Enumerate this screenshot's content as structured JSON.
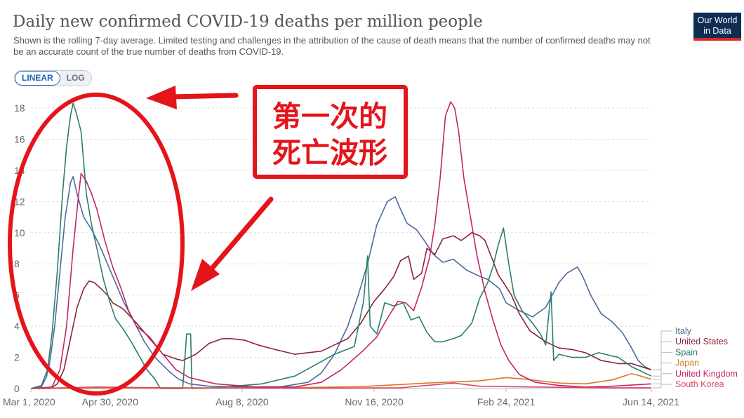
{
  "header": {
    "title": "Daily new confirmed COVID-19 deaths per million people",
    "subtitle": "Shown is the rolling 7-day average. Limited testing and challenges in the attribution of the cause of death means that the number of confirmed deaths may not be an accurate count of the true number of deaths from COVID-19."
  },
  "logo": {
    "line1": "Our World",
    "line2": "in Data"
  },
  "scale_toggle": {
    "linear": "LINEAR",
    "log": "LOG",
    "selected": "LINEAR"
  },
  "annotation": {
    "line1": "第一次的",
    "line2": "死亡波形",
    "color": "#e4141a"
  },
  "chart_data": {
    "type": "line",
    "title": "Daily new confirmed COVID-19 deaths per million people",
    "x_tick_labels": [
      "Mar 1, 2020",
      "Apr 30, 2020",
      "Aug 8, 2020",
      "Nov 16, 2020",
      "Feb 24, 2021",
      "Jun 14, 2021"
    ],
    "x_ticks_day": [
      0,
      60,
      160,
      260,
      360,
      470
    ],
    "x_range_day": [
      0,
      470
    ],
    "ylim": [
      0,
      18
    ],
    "y_ticks": [
      0,
      2,
      4,
      6,
      8,
      10,
      12,
      14,
      16,
      18
    ],
    "grid": true,
    "legend": "right",
    "series": [
      {
        "name": "Italy",
        "color": "#4c6a9c",
        "points": [
          [
            0,
            0
          ],
          [
            8,
            0.2
          ],
          [
            14,
            1.5
          ],
          [
            18,
            4
          ],
          [
            22,
            7.5
          ],
          [
            26,
            11
          ],
          [
            30,
            13.2
          ],
          [
            32,
            13.6
          ],
          [
            35,
            12.5
          ],
          [
            40,
            11
          ],
          [
            46,
            10.2
          ],
          [
            52,
            9.2
          ],
          [
            58,
            8
          ],
          [
            64,
            6.8
          ],
          [
            70,
            5.6
          ],
          [
            78,
            4.3
          ],
          [
            86,
            3
          ],
          [
            94,
            2
          ],
          [
            100,
            1.5
          ],
          [
            106,
            1
          ],
          [
            112,
            0.6
          ],
          [
            120,
            0.3
          ],
          [
            135,
            0.15
          ],
          [
            160,
            0.1
          ],
          [
            190,
            0.12
          ],
          [
            210,
            0.4
          ],
          [
            220,
            1
          ],
          [
            230,
            2.2
          ],
          [
            240,
            4
          ],
          [
            248,
            6
          ],
          [
            255,
            8
          ],
          [
            262,
            10.5
          ],
          [
            270,
            12
          ],
          [
            276,
            12.3
          ],
          [
            280,
            11.5
          ],
          [
            285,
            10.6
          ],
          [
            292,
            10.2
          ],
          [
            298,
            9.5
          ],
          [
            305,
            8.6
          ],
          [
            312,
            8.1
          ],
          [
            320,
            8.3
          ],
          [
            330,
            7.6
          ],
          [
            340,
            7.2
          ],
          [
            346,
            7
          ],
          [
            355,
            6.4
          ],
          [
            360,
            5.5
          ],
          [
            370,
            5
          ],
          [
            380,
            4.6
          ],
          [
            390,
            5.2
          ],
          [
            400,
            6.8
          ],
          [
            406,
            7.4
          ],
          [
            414,
            7.8
          ],
          [
            418,
            7.2
          ],
          [
            424,
            6
          ],
          [
            432,
            4.8
          ],
          [
            440,
            4.3
          ],
          [
            448,
            3.6
          ],
          [
            455,
            2.6
          ],
          [
            460,
            1.8
          ],
          [
            465,
            1.4
          ],
          [
            470,
            1.2
          ]
        ]
      },
      {
        "name": "United States",
        "color": "#8b2434",
        "points": [
          [
            0,
            0
          ],
          [
            15,
            0
          ],
          [
            20,
            0.3
          ],
          [
            25,
            1.2
          ],
          [
            30,
            3.2
          ],
          [
            35,
            5.2
          ],
          [
            40,
            6.4
          ],
          [
            44,
            6.9
          ],
          [
            48,
            6.8
          ],
          [
            52,
            6.5
          ],
          [
            58,
            6
          ],
          [
            62,
            5.5
          ],
          [
            70,
            5.1
          ],
          [
            80,
            4.2
          ],
          [
            90,
            3.2
          ],
          [
            100,
            2.2
          ],
          [
            110,
            1.9
          ],
          [
            115,
            1.8
          ],
          [
            125,
            2.2
          ],
          [
            135,
            2.9
          ],
          [
            145,
            3.2
          ],
          [
            152,
            3.2
          ],
          [
            162,
            3.1
          ],
          [
            172,
            2.8
          ],
          [
            185,
            2.5
          ],
          [
            200,
            2.2
          ],
          [
            220,
            2.4
          ],
          [
            230,
            2.8
          ],
          [
            240,
            3.2
          ],
          [
            250,
            4.2
          ],
          [
            260,
            5.6
          ],
          [
            268,
            6.4
          ],
          [
            275,
            7.2
          ],
          [
            280,
            8.2
          ],
          [
            286,
            8.5
          ],
          [
            290,
            7
          ],
          [
            296,
            7.4
          ],
          [
            300,
            9
          ],
          [
            306,
            8.6
          ],
          [
            312,
            9.6
          ],
          [
            320,
            9.8
          ],
          [
            326,
            9.5
          ],
          [
            334,
            10
          ],
          [
            340,
            9.8
          ],
          [
            344,
            9.5
          ],
          [
            350,
            8.2
          ],
          [
            354,
            7.3
          ],
          [
            358,
            6.8
          ],
          [
            364,
            6
          ],
          [
            370,
            4.8
          ],
          [
            378,
            3.7
          ],
          [
            390,
            3
          ],
          [
            400,
            2.6
          ],
          [
            410,
            2.5
          ],
          [
            420,
            2.3
          ],
          [
            432,
            1.8
          ],
          [
            445,
            1.6
          ],
          [
            455,
            1.6
          ],
          [
            470,
            1.2
          ]
        ]
      },
      {
        "name": "Spain",
        "color": "#2a7e6c",
        "points": [
          [
            0,
            0
          ],
          [
            8,
            0.1
          ],
          [
            12,
            0.8
          ],
          [
            16,
            3.5
          ],
          [
            20,
            7.5
          ],
          [
            24,
            12.5
          ],
          [
            27,
            15.5
          ],
          [
            30,
            17.5
          ],
          [
            32,
            18.3
          ],
          [
            34,
            17.8
          ],
          [
            38,
            16.5
          ],
          [
            42,
            12.5
          ],
          [
            46,
            10.5
          ],
          [
            50,
            9
          ],
          [
            55,
            7
          ],
          [
            60,
            5.5
          ],
          [
            64,
            4.5
          ],
          [
            70,
            3.8
          ],
          [
            76,
            3
          ],
          [
            82,
            2.1
          ],
          [
            88,
            1.2
          ],
          [
            94,
            0.6
          ],
          [
            98,
            0
          ],
          [
            115,
            0
          ],
          [
            118,
            3.5
          ],
          [
            121,
            3.5
          ],
          [
            122,
            0
          ],
          [
            140,
            0.05
          ],
          [
            175,
            0.3
          ],
          [
            200,
            0.8
          ],
          [
            215,
            1.5
          ],
          [
            230,
            2.2
          ],
          [
            245,
            2.7
          ],
          [
            252,
            5.6
          ],
          [
            255,
            8.5
          ],
          [
            257,
            4
          ],
          [
            262,
            3.5
          ],
          [
            268,
            5.5
          ],
          [
            275,
            5.3
          ],
          [
            282,
            5.5
          ],
          [
            288,
            4.4
          ],
          [
            294,
            4.6
          ],
          [
            300,
            3.6
          ],
          [
            306,
            3
          ],
          [
            312,
            3
          ],
          [
            320,
            3.2
          ],
          [
            326,
            3.4
          ],
          [
            334,
            4.2
          ],
          [
            340,
            5.8
          ],
          [
            346,
            6.8
          ],
          [
            350,
            7.8
          ],
          [
            354,
            9.2
          ],
          [
            358,
            10.3
          ],
          [
            362,
            8
          ],
          [
            366,
            6
          ],
          [
            372,
            5
          ],
          [
            380,
            4.2
          ],
          [
            386,
            3.5
          ],
          [
            390,
            2.8
          ],
          [
            394,
            6.2
          ],
          [
            396,
            1.8
          ],
          [
            400,
            2.2
          ],
          [
            410,
            2
          ],
          [
            420,
            2
          ],
          [
            430,
            2.3
          ],
          [
            445,
            2
          ],
          [
            455,
            1.4
          ],
          [
            470,
            0.8
          ]
        ]
      },
      {
        "name": "Japan",
        "color": "#d9772b",
        "points": [
          [
            0,
            0
          ],
          [
            60,
            0.03
          ],
          [
            120,
            0.03
          ],
          [
            200,
            0.06
          ],
          [
            250,
            0.12
          ],
          [
            300,
            0.35
          ],
          [
            340,
            0.5
          ],
          [
            360,
            0.7
          ],
          [
            375,
            0.6
          ],
          [
            400,
            0.35
          ],
          [
            420,
            0.3
          ],
          [
            440,
            0.55
          ],
          [
            455,
            0.95
          ],
          [
            460,
            0.85
          ],
          [
            470,
            0.6
          ]
        ]
      },
      {
        "name": "United Kingdom",
        "color": "#c2256a",
        "points": [
          [
            0,
            0
          ],
          [
            16,
            0.1
          ],
          [
            22,
            1.2
          ],
          [
            27,
            4
          ],
          [
            32,
            9
          ],
          [
            36,
            12.3
          ],
          [
            38,
            13.8
          ],
          [
            42,
            13.3
          ],
          [
            46,
            12.5
          ],
          [
            50,
            11.5
          ],
          [
            56,
            9.5
          ],
          [
            62,
            7.8
          ],
          [
            68,
            6.5
          ],
          [
            74,
            5
          ],
          [
            80,
            4
          ],
          [
            90,
            3.3
          ],
          [
            100,
            2.2
          ],
          [
            110,
            1.2
          ],
          [
            120,
            0.7
          ],
          [
            140,
            0.3
          ],
          [
            170,
            0.1
          ],
          [
            200,
            0.1
          ],
          [
            220,
            0.4
          ],
          [
            235,
            1.2
          ],
          [
            250,
            2.3
          ],
          [
            262,
            3.3
          ],
          [
            270,
            4.5
          ],
          [
            278,
            5.6
          ],
          [
            284,
            5.5
          ],
          [
            290,
            5
          ],
          [
            296,
            6.5
          ],
          [
            302,
            8.4
          ],
          [
            306,
            10.5
          ],
          [
            310,
            13.5
          ],
          [
            314,
            17.5
          ],
          [
            318,
            18.4
          ],
          [
            321,
            18
          ],
          [
            324,
            16.5
          ],
          [
            328,
            13.5
          ],
          [
            332,
            11.5
          ],
          [
            338,
            8.5
          ],
          [
            344,
            6.2
          ],
          [
            350,
            4.4
          ],
          [
            356,
            2.8
          ],
          [
            362,
            1.8
          ],
          [
            370,
            0.9
          ],
          [
            382,
            0.4
          ],
          [
            400,
            0.2
          ],
          [
            420,
            0.1
          ],
          [
            440,
            0.15
          ],
          [
            470,
            0.3
          ]
        ]
      },
      {
        "name": "South Korea",
        "color": "#d9485f",
        "points": [
          [
            0,
            0
          ],
          [
            50,
            0.1
          ],
          [
            100,
            0.05
          ],
          [
            200,
            0.02
          ],
          [
            280,
            0.05
          ],
          [
            300,
            0.2
          ],
          [
            320,
            0.35
          ],
          [
            340,
            0.15
          ],
          [
            380,
            0.1
          ],
          [
            440,
            0.05
          ],
          [
            470,
            0.05
          ]
        ]
      }
    ]
  }
}
